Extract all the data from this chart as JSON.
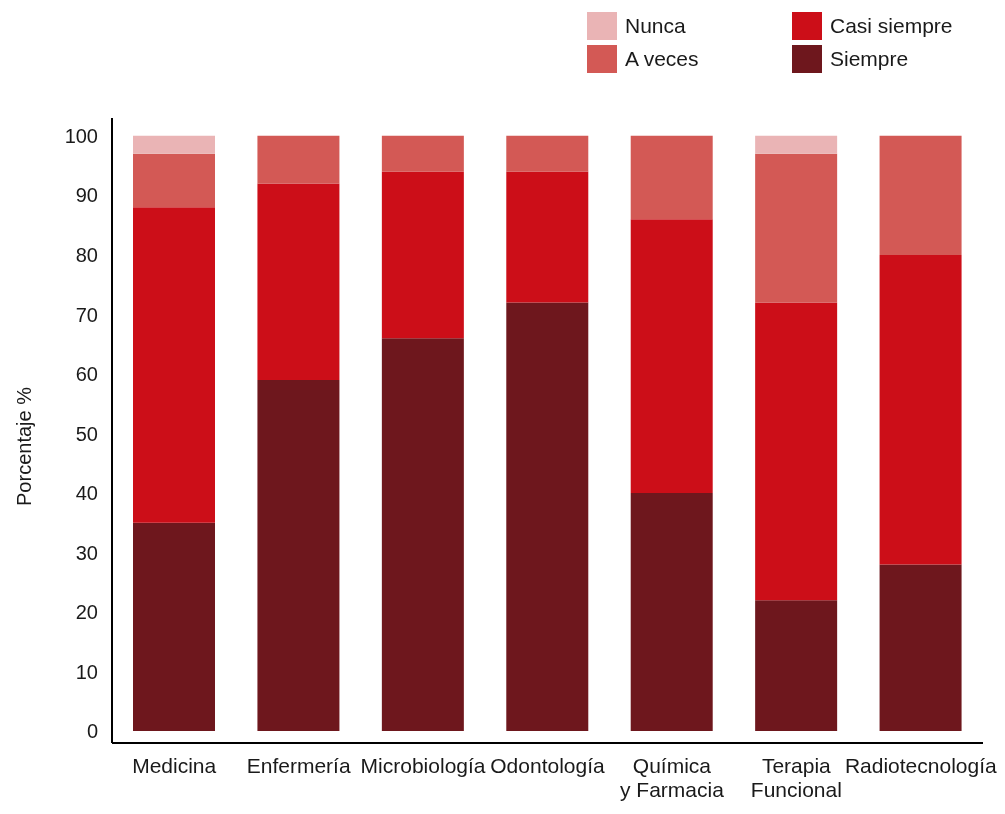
{
  "chart_data": {
    "type": "bar",
    "ylabel": "Porcentaje %",
    "categories": [
      "Medicina",
      "Enfermería",
      "Microbiología",
      "Odontología",
      "Química y Farmacia",
      "Terapia Funcional",
      "Radiotecnología"
    ],
    "stacked": true,
    "series": [
      {
        "name": "Siempre",
        "color": "#6e171d",
        "values": [
          35,
          59,
          66,
          72,
          40,
          22,
          28
        ]
      },
      {
        "name": "Casi siempre",
        "color": "#cc0e18",
        "values": [
          53,
          33,
          28,
          22,
          46,
          50,
          52
        ]
      },
      {
        "name": "A veces",
        "color": "#d35955",
        "values": [
          9,
          8,
          6,
          6,
          14,
          25,
          20
        ]
      },
      {
        "name": "Nunca",
        "color": "#eab4b5",
        "values": [
          3,
          0,
          0,
          0,
          0,
          3,
          0
        ]
      }
    ],
    "ylim": [
      -2,
      103
    ],
    "yticks": [
      0,
      10,
      20,
      30,
      40,
      50,
      60,
      70,
      80,
      90,
      100
    ],
    "legend": "top right"
  }
}
